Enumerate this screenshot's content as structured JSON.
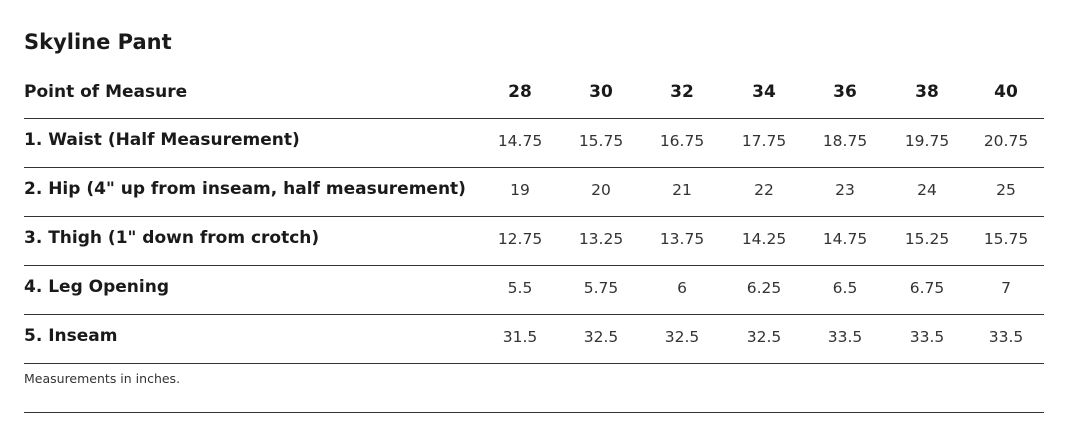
{
  "header": {
    "title": "Skyline Pant"
  },
  "table": {
    "columns": [
      "Point of Measure",
      "28",
      "30",
      "32",
      "34",
      "36",
      "38",
      "40"
    ],
    "rows": [
      [
        "1. Waist (Half Measurement)",
        "14.75",
        "15.75",
        "16.75",
        "17.75",
        "18.75",
        "19.75",
        "20.75"
      ],
      [
        "2. Hip (4\" up from inseam, half measurement)",
        "19",
        "20",
        "21",
        "22",
        "23",
        "24",
        "25"
      ],
      [
        "3. Thigh (1\" down from crotch)",
        "12.75",
        "13.25",
        "13.75",
        "14.25",
        "14.75",
        "15.25",
        "15.75"
      ],
      [
        "4. Leg Opening",
        "5.5",
        "5.75",
        "6",
        "6.25",
        "6.5",
        "6.75",
        "7"
      ],
      [
        "5. Inseam",
        "31.5",
        "32.5",
        "32.5",
        "32.5",
        "33.5",
        "33.5",
        "33.5"
      ]
    ],
    "note": "Measurements in inches."
  }
}
